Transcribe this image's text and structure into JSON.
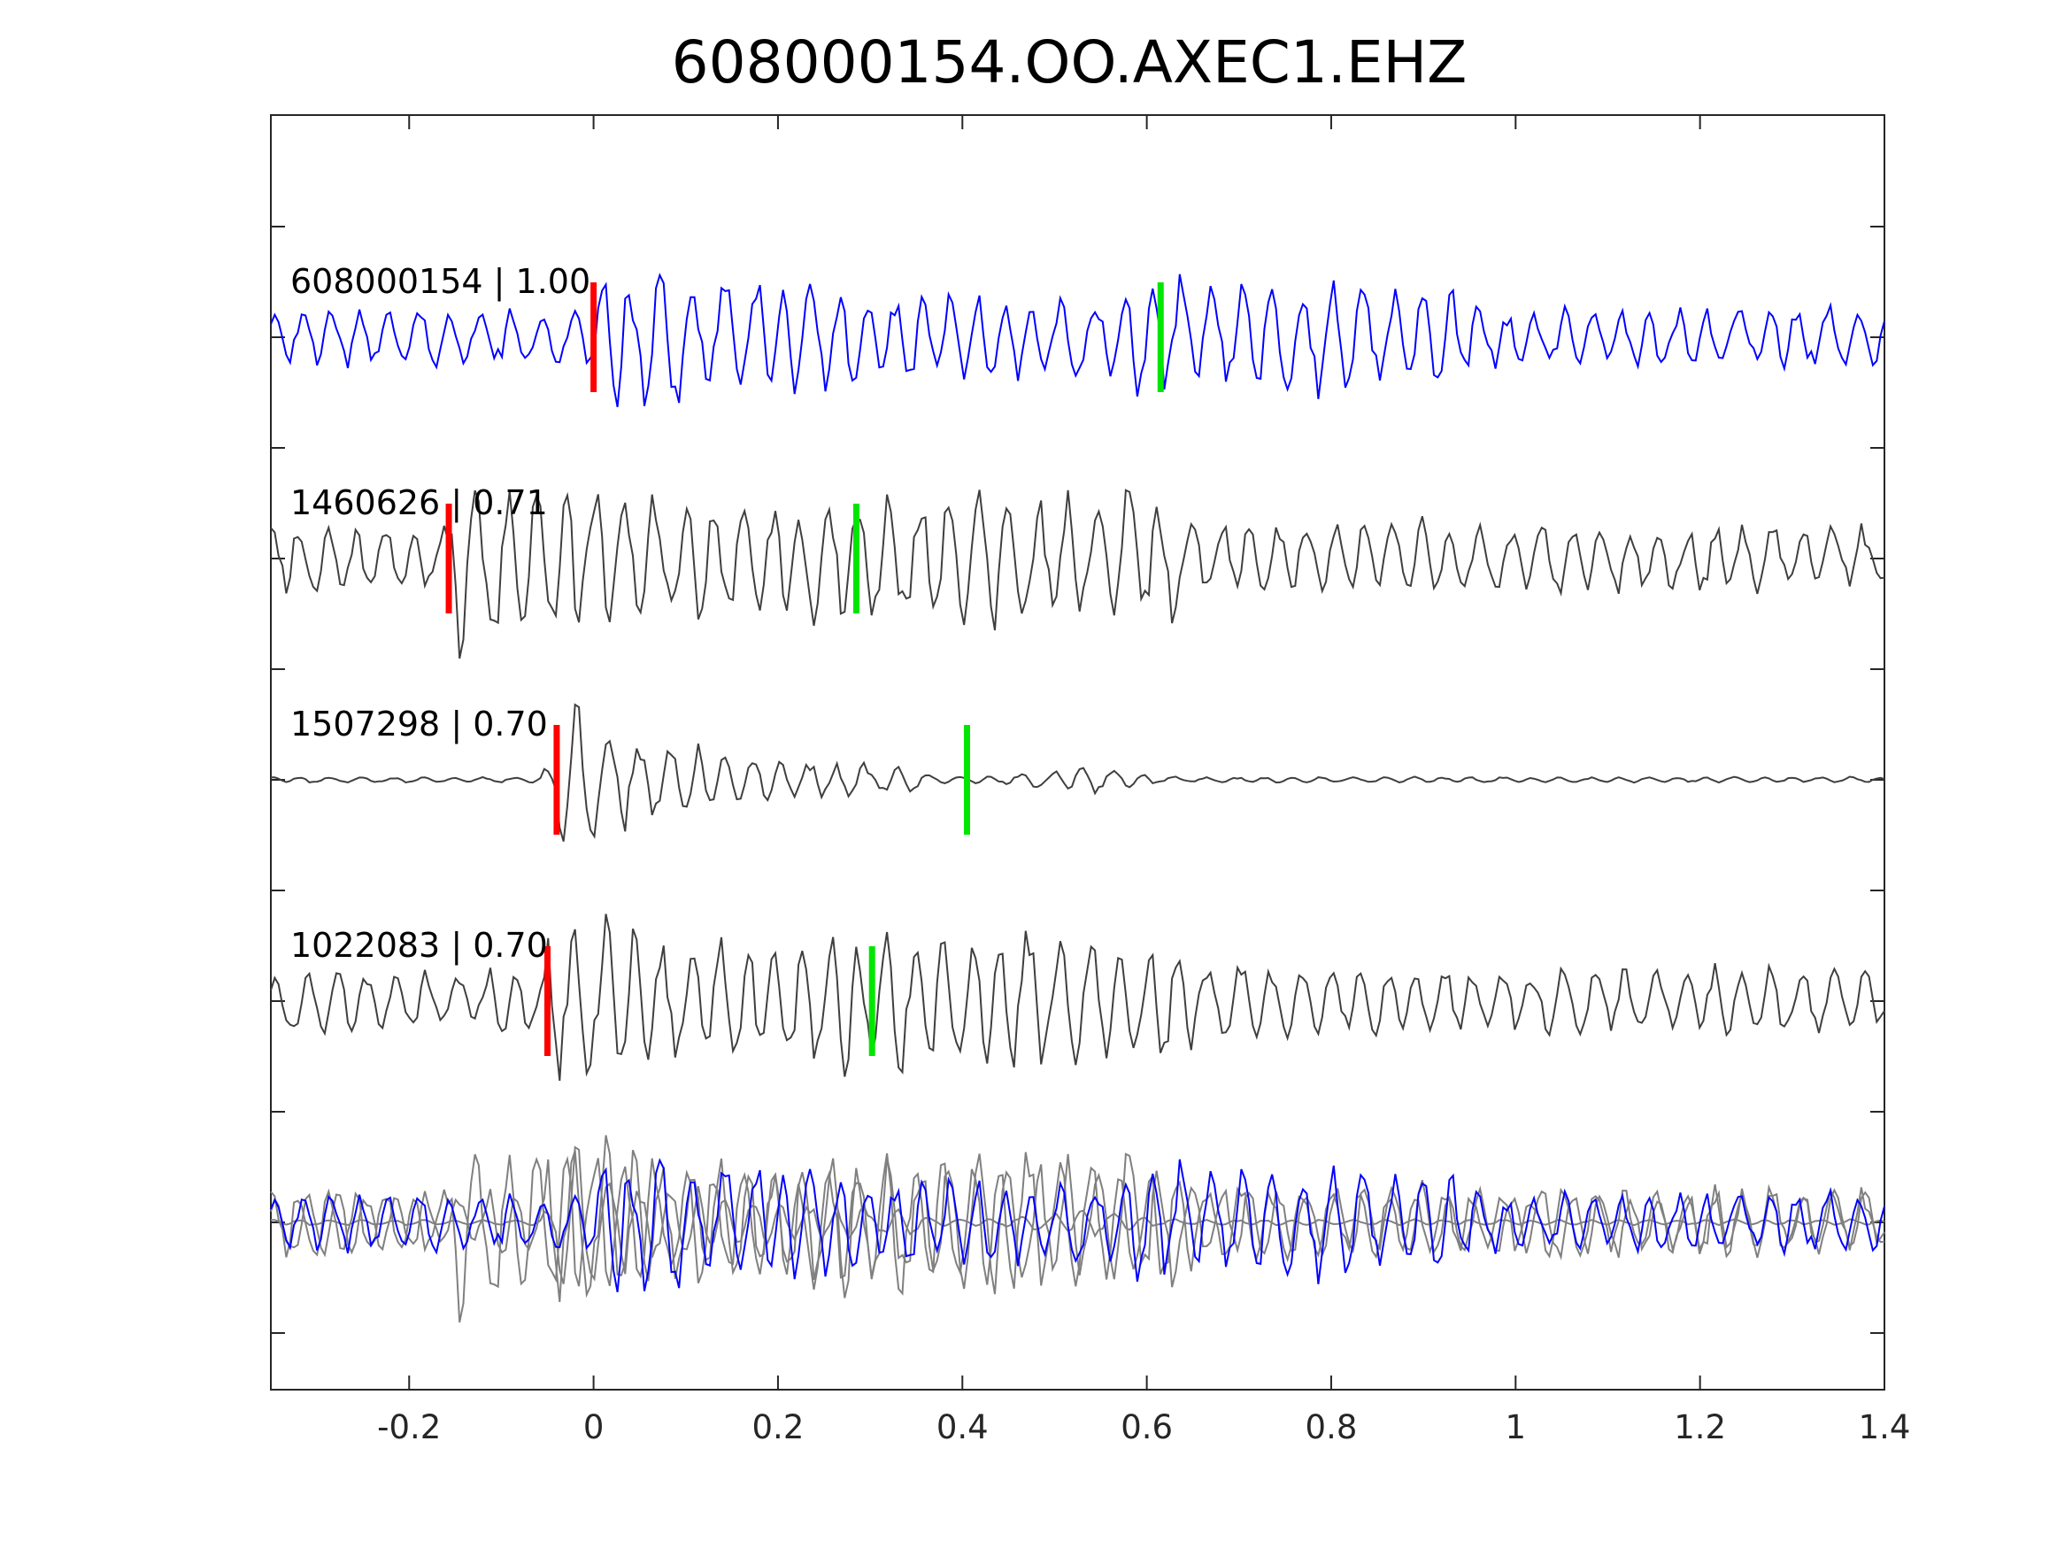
{
  "chart_data": {
    "type": "line",
    "title": "608000154.OO.AXEC1.EHZ",
    "xlabel": "",
    "ylabel": "",
    "xlim": [
      -0.35,
      1.4
    ],
    "x_ticks": [
      -0.2,
      0,
      0.2,
      0.4,
      0.6,
      0.8,
      1,
      1.2,
      1.4
    ],
    "x_tick_labels": [
      "-0.2",
      "0",
      "0.2",
      "0.4",
      "0.6",
      "0.8",
      "1",
      "1.2",
      "1.4"
    ],
    "grid": false,
    "legend": "none",
    "colors": {
      "template": "#0000ff",
      "match": "#3f3f3f",
      "overlay_match": "#808080",
      "p_pick": "#ff0000",
      "s_pick": "#00e600",
      "axes": "#262626"
    },
    "series": [
      {
        "label": "608000154 | 1.00",
        "role": "template",
        "p_pick": 0.0,
        "s_pick": 0.615,
        "style": "noisy",
        "amplitude": 0.75,
        "seed": 11
      },
      {
        "label": "1460626 | 0.71",
        "role": "match",
        "p_pick": -0.157,
        "s_pick": 0.285,
        "style": "noisy",
        "amplitude": 0.9,
        "seed": 23
      },
      {
        "label": "1507298 | 0.70",
        "role": "match",
        "p_pick": -0.04,
        "s_pick": 0.405,
        "style": "clean",
        "amplitude": 0.85,
        "seed": 37
      },
      {
        "label": "1022083 | 0.70",
        "role": "match",
        "p_pick": -0.05,
        "s_pick": 0.302,
        "style": "noisy",
        "amplitude": 0.85,
        "seed": 53
      }
    ],
    "overlay": {
      "description_row": "stack",
      "includes": [
        "608000154",
        "1460626",
        "1507298",
        "1022083"
      ]
    }
  }
}
